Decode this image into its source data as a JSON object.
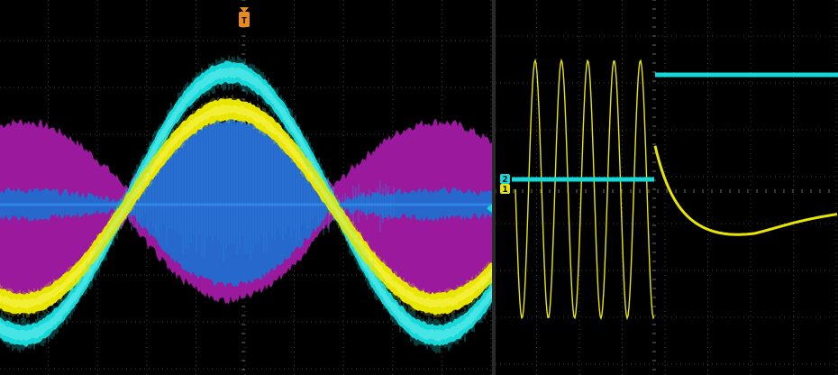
{
  "colors": {
    "background": "#000000",
    "grid": "#3c3c3c",
    "grid_center": "#6a6a6a",
    "trace_yellow": "#e8e600",
    "trace_cyan": "#16d8d8",
    "trace_magenta": "#a21aa5",
    "trace_blue": "#1c6fd0",
    "trigger_marker": "#e8891f"
  },
  "left_display": {
    "trigger_marker_label": "T",
    "traces": [
      "yellow",
      "cyan",
      "magenta",
      "blue"
    ]
  },
  "right_display": {
    "channel_marker_labels": [
      "2",
      "1"
    ],
    "traces": [
      "yellow",
      "cyan"
    ]
  },
  "icons": [
    "trigger-position-icon",
    "channel-1-marker-icon",
    "channel-2-marker-icon",
    "trigger-level-icon"
  ]
}
